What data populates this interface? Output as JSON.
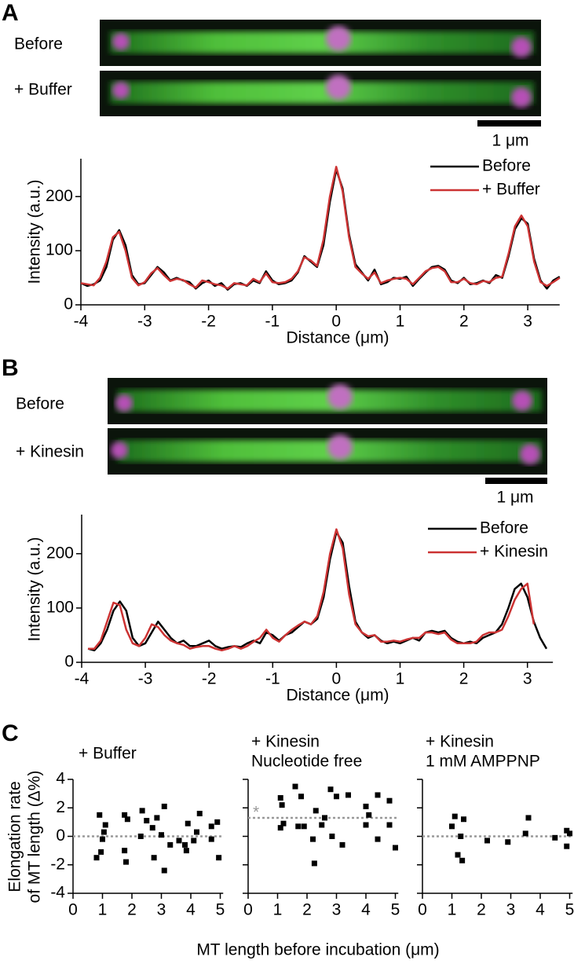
{
  "panel_labels": [
    "A",
    "B",
    "C"
  ],
  "image_strips": [
    {
      "labels": [
        "Before",
        "+ Buffer"
      ],
      "scale_bar": "1 μm"
    },
    {
      "labels": [
        "Before",
        "+ Kinesin"
      ],
      "scale_bar": "1 μm"
    }
  ],
  "panel_c": {
    "ylabel_lines": [
      "Elongation rate",
      "of MT length (Δ%)"
    ],
    "xlabel": "MT length before incubation (μm)"
  },
  "chart_data": [
    {
      "type": "line",
      "xlabel": "Distance (μm)",
      "ylabel": "Intensity (a.u.)",
      "xlim": [
        -4,
        3.5
      ],
      "ylim": [
        0,
        270
      ],
      "xticks": [
        -4,
        -3,
        -2,
        -1,
        0,
        1,
        2,
        3
      ],
      "yticks": [
        0,
        100,
        200
      ],
      "legend": "upper right",
      "x": [
        -4,
        -3.9,
        -3.8,
        -3.7,
        -3.6,
        -3.5,
        -3.4,
        -3.3,
        -3.2,
        -3.1,
        -3,
        -2.9,
        -2.8,
        -2.7,
        -2.6,
        -2.5,
        -2.4,
        -2.3,
        -2.2,
        -2.1,
        -2,
        -1.9,
        -1.8,
        -1.7,
        -1.6,
        -1.5,
        -1.4,
        -1.3,
        -1.2,
        -1.1,
        -1,
        -0.9,
        -0.8,
        -0.7,
        -0.6,
        -0.5,
        -0.4,
        -0.3,
        -0.2,
        -0.1,
        0,
        0.1,
        0.2,
        0.3,
        0.4,
        0.5,
        0.6,
        0.7,
        0.8,
        0.9,
        1,
        1.1,
        1.2,
        1.3,
        1.4,
        1.5,
        1.6,
        1.7,
        1.8,
        1.9,
        2,
        2.1,
        2.2,
        2.3,
        2.4,
        2.5,
        2.6,
        2.7,
        2.8,
        2.9,
        3,
        3.1,
        3.2,
        3.3,
        3.4,
        3.5
      ],
      "series": [
        {
          "name": "Before",
          "color": "#000000",
          "values": [
            40,
            35,
            38,
            45,
            70,
            120,
            138,
            110,
            55,
            38,
            40,
            55,
            70,
            60,
            45,
            50,
            45,
            42,
            30,
            40,
            45,
            35,
            40,
            28,
            38,
            40,
            35,
            45,
            40,
            62,
            45,
            38,
            40,
            45,
            60,
            90,
            80,
            70,
            110,
            190,
            250,
            215,
            130,
            75,
            60,
            45,
            65,
            38,
            42,
            50,
            48,
            52,
            35,
            48,
            60,
            70,
            72,
            65,
            45,
            40,
            50,
            38,
            40,
            45,
            40,
            55,
            50,
            90,
            140,
            160,
            150,
            85,
            45,
            30,
            45,
            52
          ]
        },
        {
          "name": "+ Buffer",
          "color": "#cc3333",
          "values": [
            40,
            38,
            36,
            50,
            80,
            125,
            135,
            100,
            50,
            36,
            42,
            58,
            68,
            55,
            44,
            48,
            46,
            38,
            32,
            45,
            42,
            38,
            36,
            30,
            40,
            38,
            36,
            48,
            42,
            58,
            42,
            40,
            42,
            48,
            62,
            88,
            82,
            72,
            120,
            200,
            255,
            210,
            125,
            70,
            58,
            48,
            60,
            40,
            45,
            48,
            50,
            48,
            38,
            50,
            62,
            68,
            70,
            62,
            42,
            42,
            48,
            40,
            38,
            44,
            42,
            50,
            52,
            95,
            145,
            165,
            145,
            80,
            42,
            35,
            42,
            50
          ]
        }
      ]
    },
    {
      "type": "line",
      "xlabel": "Distance (μm)",
      "ylabel": "Intensity (a.u.)",
      "xlim": [
        -4,
        3.4
      ],
      "ylim": [
        0,
        272
      ],
      "xticks": [
        -4,
        -3,
        -2,
        -1,
        0,
        1,
        2,
        3
      ],
      "yticks": [
        0,
        100,
        200
      ],
      "legend": "upper right",
      "x": [
        -3.9,
        -3.8,
        -3.7,
        -3.6,
        -3.5,
        -3.4,
        -3.3,
        -3.2,
        -3.1,
        -3,
        -2.9,
        -2.8,
        -2.7,
        -2.6,
        -2.5,
        -2.4,
        -2.3,
        -2.2,
        -2.1,
        -2,
        -1.9,
        -1.8,
        -1.7,
        -1.6,
        -1.5,
        -1.4,
        -1.3,
        -1.2,
        -1.1,
        -1,
        -0.9,
        -0.8,
        -0.7,
        -0.6,
        -0.5,
        -0.4,
        -0.3,
        -0.2,
        -0.1,
        0,
        0.1,
        0.2,
        0.3,
        0.4,
        0.5,
        0.6,
        0.7,
        0.8,
        0.9,
        1,
        1.1,
        1.2,
        1.3,
        1.4,
        1.5,
        1.6,
        1.7,
        1.8,
        1.9,
        2,
        2.1,
        2.2,
        2.3,
        2.4,
        2.5,
        2.6,
        2.7,
        2.8,
        2.9,
        3,
        3.1,
        3.2,
        3.3
      ],
      "series": [
        {
          "name": "Before",
          "color": "#000000",
          "values": [
            25,
            22,
            35,
            60,
            95,
            112,
            95,
            45,
            30,
            35,
            55,
            75,
            60,
            45,
            35,
            40,
            30,
            30,
            35,
            40,
            30,
            25,
            28,
            30,
            28,
            35,
            40,
            35,
            55,
            50,
            40,
            50,
            55,
            65,
            75,
            70,
            80,
            120,
            190,
            240,
            220,
            140,
            75,
            55,
            45,
            50,
            40,
            35,
            38,
            35,
            40,
            45,
            40,
            55,
            58,
            55,
            58,
            45,
            38,
            35,
            38,
            35,
            45,
            50,
            55,
            70,
            100,
            135,
            145,
            120,
            75,
            45,
            25
          ]
        },
        {
          "name": "+ Kinesin",
          "color": "#cc3333",
          "values": [
            25,
            25,
            40,
            75,
            110,
            105,
            60,
            35,
            30,
            45,
            70,
            65,
            50,
            40,
            35,
            32,
            25,
            28,
            30,
            30,
            25,
            22,
            25,
            30,
            25,
            30,
            38,
            45,
            60,
            45,
            38,
            50,
            60,
            68,
            75,
            70,
            85,
            130,
            200,
            245,
            210,
            125,
            70,
            55,
            48,
            50,
            38,
            38,
            40,
            38,
            42,
            45,
            45,
            55,
            55,
            52,
            55,
            42,
            35,
            35,
            35,
            38,
            50,
            55,
            55,
            60,
            85,
            115,
            135,
            145,
            70,
            null,
            null
          ]
        }
      ]
    },
    {
      "type": "scatter",
      "title_lines": [
        "+ Buffer"
      ],
      "xlim": [
        0,
        5.1
      ],
      "ylim": [
        -4,
        4
      ],
      "xticks": [
        0,
        1,
        2,
        3,
        4,
        5
      ],
      "yticks": [
        -4,
        -2,
        0,
        2,
        4
      ],
      "show_ytick_labels": true,
      "color": "#000000",
      "reference_line": 0,
      "reference_color": "#999999",
      "x": [
        0.9,
        0.8,
        0.95,
        1.0,
        1.05,
        1.1,
        1.75,
        1.8,
        1.75,
        1.85,
        2.3,
        2.35,
        2.5,
        2.7,
        2.75,
        2.85,
        3.0,
        3.1,
        3.1,
        3.3,
        3.6,
        3.85,
        3.9,
        3.8,
        4.1,
        4.2,
        4.3,
        4.7,
        4.7,
        4.9,
        4.95
      ],
      "values": [
        1.5,
        -1.5,
        -1.1,
        -0.2,
        0.3,
        0.8,
        -1.0,
        -1.8,
        1.5,
        1.2,
        0,
        1.8,
        1.1,
        0.6,
        -1.5,
        1.3,
        0.1,
        -2.4,
        2.1,
        -0.6,
        -0.3,
        -1.0,
        0.9,
        -0.6,
        -0.3,
        0.3,
        1.6,
        -0.2,
        0.7,
        1.0,
        -1.5
      ]
    },
    {
      "type": "scatter",
      "title_lines": [
        "+ Kinesin",
        "Nucleotide free"
      ],
      "annotation": "*",
      "xlim": [
        0,
        5.1
      ],
      "ylim": [
        -4,
        4
      ],
      "xticks": [
        0,
        1,
        2,
        3,
        4,
        5
      ],
      "yticks": [
        -4,
        -2,
        0,
        2,
        4
      ],
      "show_ytick_labels": false,
      "color": "#000000",
      "reference_line": 1.3,
      "reference_color": "#999999",
      "x": [
        1.1,
        1.15,
        1.1,
        1.2,
        1.6,
        1.7,
        1.9,
        1.8,
        2.2,
        2.25,
        2.3,
        2.5,
        2.6,
        2.8,
        2.85,
        3.0,
        3.2,
        3.4,
        4.0,
        4.0,
        4.1,
        4.4,
        4.4,
        4.8,
        4.8,
        5.0
      ],
      "values": [
        2.7,
        2.2,
        0.6,
        0.9,
        3.5,
        0.7,
        0.7,
        2.8,
        -0.2,
        -1.9,
        1.8,
        0.8,
        1.3,
        3.3,
        0,
        2.8,
        -0.6,
        2.9,
        2.1,
        0.8,
        1.5,
        2.9,
        -0.2,
        2.5,
        0.8,
        -0.8
      ]
    },
    {
      "type": "scatter",
      "title_lines": [
        "+ Kinesin",
        "1 mM AMPPNP"
      ],
      "xlim": [
        0,
        5.1
      ],
      "ylim": [
        -4,
        4
      ],
      "xticks": [
        0,
        1,
        2,
        3,
        4,
        5
      ],
      "yticks": [
        -4,
        -2,
        0,
        2,
        4
      ],
      "show_ytick_labels": false,
      "color": "#000000",
      "reference_line": 0,
      "reference_color": "#999999",
      "x": [
        1.0,
        1.1,
        1.2,
        1.3,
        1.35,
        1.4,
        2.2,
        2.9,
        3.5,
        3.6,
        4.5,
        4.9,
        4.9,
        5.0
      ],
      "values": [
        0.7,
        1.4,
        -1.3,
        0,
        -1.7,
        1.2,
        -0.3,
        -0.4,
        0.2,
        1.3,
        -0.1,
        0.4,
        -0.7,
        0.2
      ]
    }
  ]
}
